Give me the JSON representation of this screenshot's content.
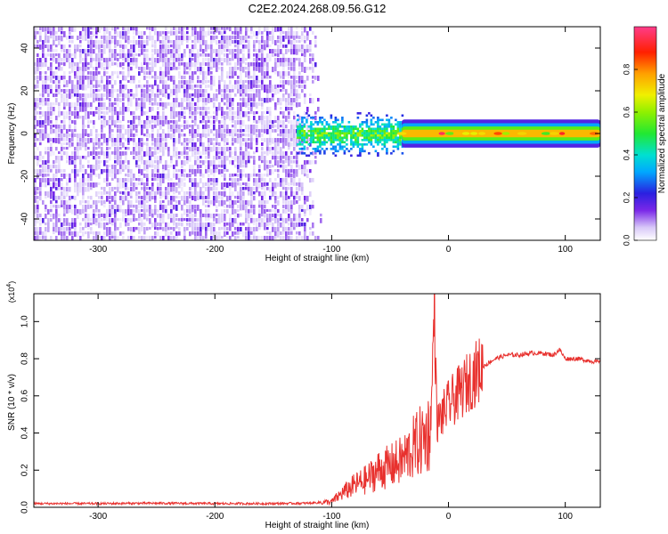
{
  "title": "C2E2.2024.268.09.56.G12",
  "chart_data": [
    {
      "type": "heatmap",
      "title": "C2E2.2024.268.09.56.G12",
      "xlabel": "Height of straight line (km)",
      "ylabel": "Frequency (Hz)",
      "xlim": [
        -355,
        130
      ],
      "ylim": [
        -50,
        50
      ],
      "x_ticks": [
        -300,
        -200,
        -100,
        0,
        100
      ],
      "x_tick_labels": [
        "-300",
        "-200",
        "-100",
        "0",
        "100"
      ],
      "y_ticks": [
        -40,
        -20,
        0,
        20,
        40
      ],
      "y_tick_labels": [
        "-40",
        "-20",
        "0",
        "20",
        "40"
      ],
      "colorbar": {
        "label": "Normalized spectral amplitude",
        "range": [
          0,
          1
        ],
        "ticks": [
          0.0,
          0.2,
          0.4,
          0.6,
          0.8
        ],
        "tick_labels": [
          "0.0",
          "0.2",
          "0.4",
          "0.6",
          "0.8"
        ]
      },
      "regions": [
        {
          "name": "noise",
          "x_range": [
            -355,
            -110
          ],
          "freq_range": [
            -50,
            50
          ],
          "amplitude_range": [
            0.02,
            0.12
          ]
        },
        {
          "name": "signal_turbulent",
          "x_range": [
            -130,
            -40
          ],
          "freq_center": 0,
          "freq_halfwidth": 5,
          "amplitude_range": [
            0.2,
            0.6
          ]
        },
        {
          "name": "signal_stable",
          "x_range": [
            -40,
            130
          ],
          "freq_center": 0,
          "freq_halfwidth": 3,
          "amplitude_range": [
            0.5,
            1.0
          ]
        }
      ]
    },
    {
      "type": "line",
      "xlabel": "Height of straight line (km)",
      "ylabel": "SNR (10 * v/v)",
      "y_scale_label": "(x10",
      "y_scale_exp": "4",
      "xlim": [
        -355,
        130
      ],
      "ylim": [
        0,
        1.15
      ],
      "x_ticks": [
        -300,
        -200,
        -100,
        0,
        100
      ],
      "x_tick_labels": [
        "-300",
        "-200",
        "-100",
        "0",
        "100"
      ],
      "y_ticks": [
        0.0,
        0.2,
        0.4,
        0.6,
        0.8,
        1.0
      ],
      "y_tick_labels": [
        "0.0",
        "0.2",
        "0.4",
        "0.6",
        "0.8",
        "1.0"
      ],
      "color": "#e8312e",
      "series": [
        {
          "name": "SNR",
          "x": [
            -355,
            -300,
            -250,
            -200,
            -150,
            -120,
            -100,
            -90,
            -80,
            -70,
            -60,
            -50,
            -40,
            -30,
            -20,
            -15,
            -12,
            -10,
            -5,
            0,
            10,
            20,
            30,
            40,
            50,
            60,
            70,
            80,
            90,
            95,
            100,
            110,
            120,
            130
          ],
          "y": [
            0.02,
            0.02,
            0.022,
            0.02,
            0.02,
            0.022,
            0.03,
            0.08,
            0.12,
            0.15,
            0.2,
            0.22,
            0.25,
            0.32,
            0.38,
            0.42,
            1.15,
            0.45,
            0.5,
            0.55,
            0.62,
            0.7,
            0.76,
            0.8,
            0.82,
            0.82,
            0.83,
            0.83,
            0.82,
            0.85,
            0.8,
            0.8,
            0.79,
            0.78
          ]
        }
      ]
    }
  ]
}
